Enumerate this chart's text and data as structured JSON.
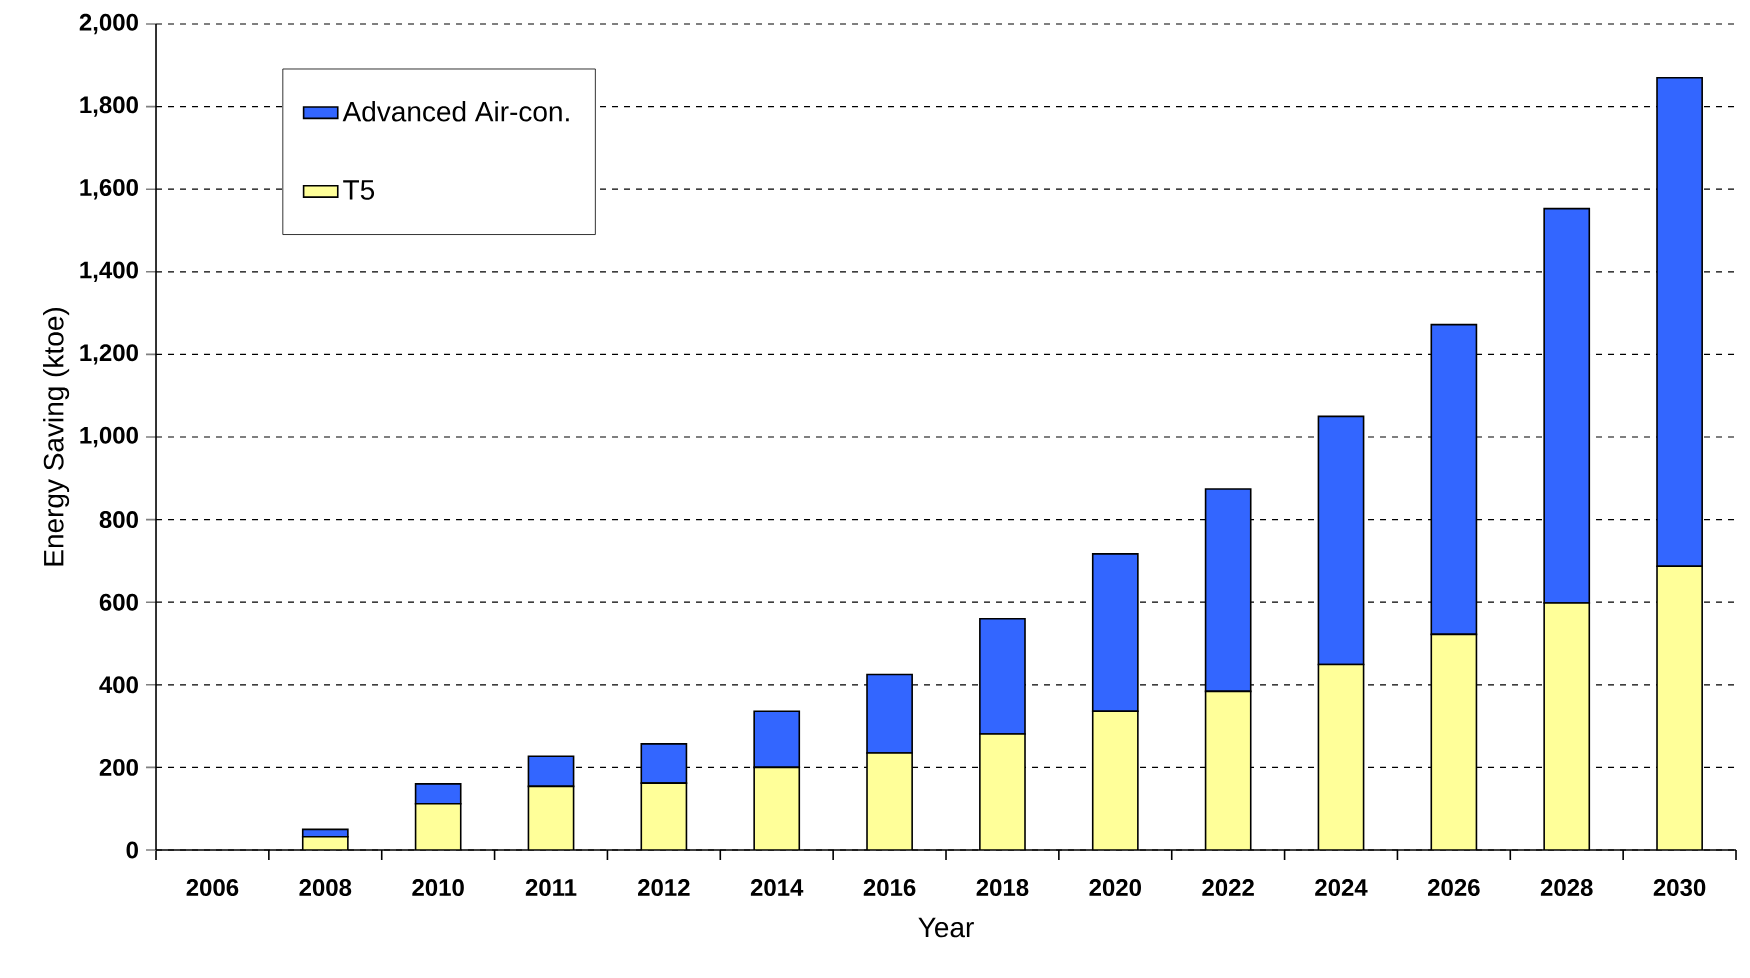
{
  "chart_data": {
    "type": "bar",
    "stacked": true,
    "xlabel": "Year",
    "ylabel": "Energy Saving (ktoe)",
    "categories": [
      "2006",
      "2008",
      "2010",
      "2011",
      "2012",
      "2014",
      "2016",
      "2018",
      "2020",
      "2022",
      "2024",
      "2026",
      "2028",
      "2030"
    ],
    "series": [
      {
        "name": "T5",
        "color": "#ffff99",
        "values": [
          0,
          32,
          112,
          154,
          162,
          200,
          235,
          281,
          336,
          384,
          449,
          522,
          598,
          687
        ]
      },
      {
        "name": "Advanced Air-con.",
        "color": "#3366ff",
        "values": [
          0,
          18,
          48,
          73,
          95,
          136,
          190,
          279,
          381,
          490,
          601,
          750,
          955,
          1183
        ]
      }
    ],
    "ylim": [
      0,
      2000
    ],
    "yticks": [
      0,
      200,
      400,
      600,
      800,
      {
        "value": 1000,
        "label": "1,000"
      },
      {
        "value": 1200,
        "label": "1,200"
      },
      {
        "value": 1400,
        "label": "1,400"
      },
      {
        "value": 1600,
        "label": "1,600"
      },
      {
        "value": 1800,
        "label": "1,800"
      },
      {
        "value": 2000,
        "label": "2,000"
      }
    ],
    "grid": "y",
    "legend": "top left"
  }
}
